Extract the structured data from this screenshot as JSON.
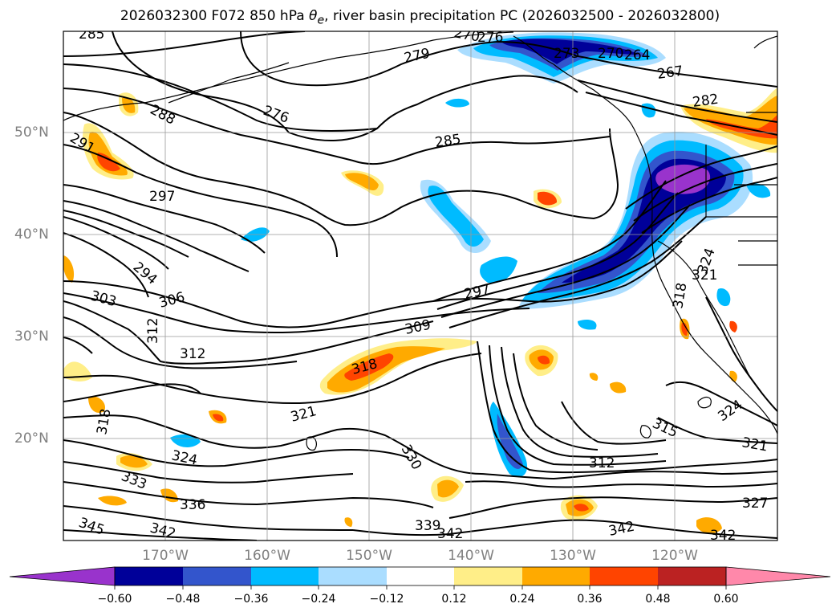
{
  "title": {
    "prefix": "2026032300 F072 850 hPa",
    "theta_symbol": "θ",
    "theta_sub": "e",
    "suffix": ", river basin precipitation PC (2026032500 - 2026032800)"
  },
  "map": {
    "lat_labels": [
      "50°N",
      "40°N",
      "30°N",
      "20°N"
    ],
    "lon_labels": [
      "170°W",
      "160°W",
      "150°W",
      "140°W",
      "130°W",
      "120°W"
    ],
    "contour_labels": [
      "285",
      "270",
      "276",
      "279",
      "273",
      "270",
      "264",
      "267",
      "282",
      "288",
      "276",
      "291",
      "285",
      "297",
      "294",
      "303",
      "306",
      "312",
      "297",
      "309",
      "312",
      "318",
      "321",
      "318",
      "324",
      "330",
      "333",
      "336",
      "345",
      "342",
      "339",
      "342",
      "312",
      "315",
      "324",
      "321",
      "327",
      "342",
      "342",
      "321",
      "324",
      "318"
    ]
  },
  "colorbar": {
    "colors": [
      "#9933cc",
      "#000099",
      "#3355cc",
      "#00bbff",
      "#aaddff",
      "#ffffff",
      "#ffee88",
      "#ffaa00",
      "#ff4400",
      "#bb2222",
      "#ff88aa"
    ],
    "tick_labels": [
      "−0.60",
      "−0.48",
      "−0.36",
      "−0.24",
      "−0.12",
      "0.12",
      "0.24",
      "0.36",
      "0.48",
      "0.60"
    ]
  },
  "colors": {
    "label_gray": "#808080",
    "grid_gray": "#999999"
  }
}
